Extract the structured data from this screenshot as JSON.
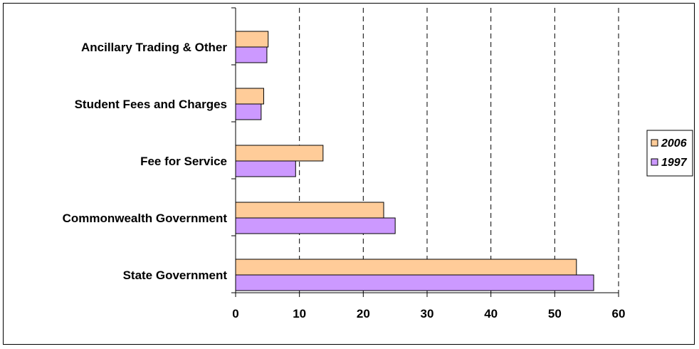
{
  "chart_data": {
    "type": "bar",
    "orientation": "horizontal",
    "categories": [
      "Ancillary Trading & Other",
      "Student Fees and Charges",
      "Fee for Service",
      "Commonwealth Government",
      "State Government"
    ],
    "series": [
      {
        "name": "2006",
        "values": [
          5.1,
          4.4,
          13.7,
          23.2,
          53.4
        ],
        "color": "#ffcc99"
      },
      {
        "name": "1997",
        "values": [
          4.9,
          4.0,
          9.4,
          25.0,
          56.1
        ],
        "color": "#cc99ff"
      }
    ],
    "title": "",
    "xlabel": "",
    "ylabel": "",
    "xlim": [
      0,
      60
    ],
    "xticks": [
      0,
      10,
      20,
      30,
      40,
      50,
      60
    ],
    "grid": "vertical-dashed",
    "legend_position": "right"
  }
}
